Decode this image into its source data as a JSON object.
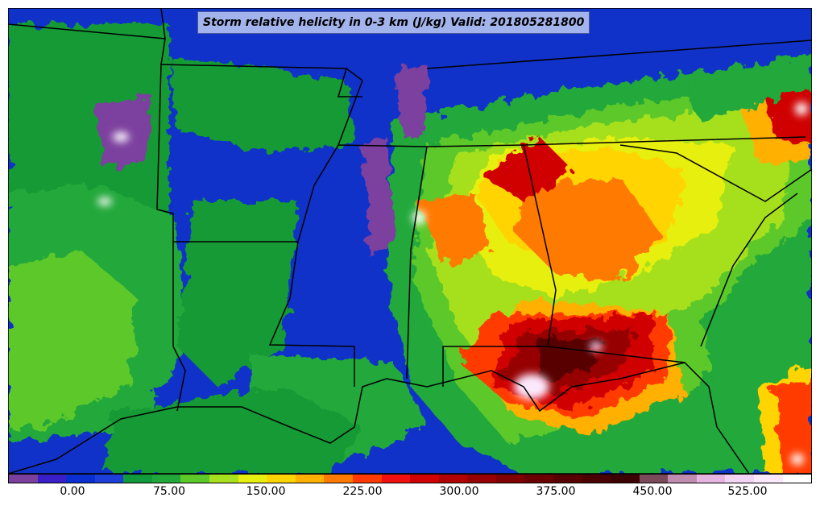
{
  "title": "Storm relative helicity in 0-3 km (J/kg) Valid: 201805281800",
  "colorbar": {
    "colors": [
      "#7b3f9e",
      "#3a1fc8",
      "#0a2fd1",
      "#1d3fd8",
      "#119a3c",
      "#22a83a",
      "#5cc82a",
      "#a6e01e",
      "#e6ef10",
      "#ffd400",
      "#ffb000",
      "#ff7a00",
      "#ff3a00",
      "#f01010",
      "#d00000",
      "#b00000",
      "#960000",
      "#800000",
      "#6a0000",
      "#580000",
      "#4a0000",
      "#3c0000",
      "#7a4a5a",
      "#c08cb0",
      "#e6b4e0",
      "#f4d4f4",
      "#fce8fc",
      "#ffffff"
    ],
    "ticks": [
      "0.00",
      "75.00",
      "150.00",
      "225.00",
      "300.00",
      "375.00",
      "450.00",
      "525.00"
    ]
  }
}
